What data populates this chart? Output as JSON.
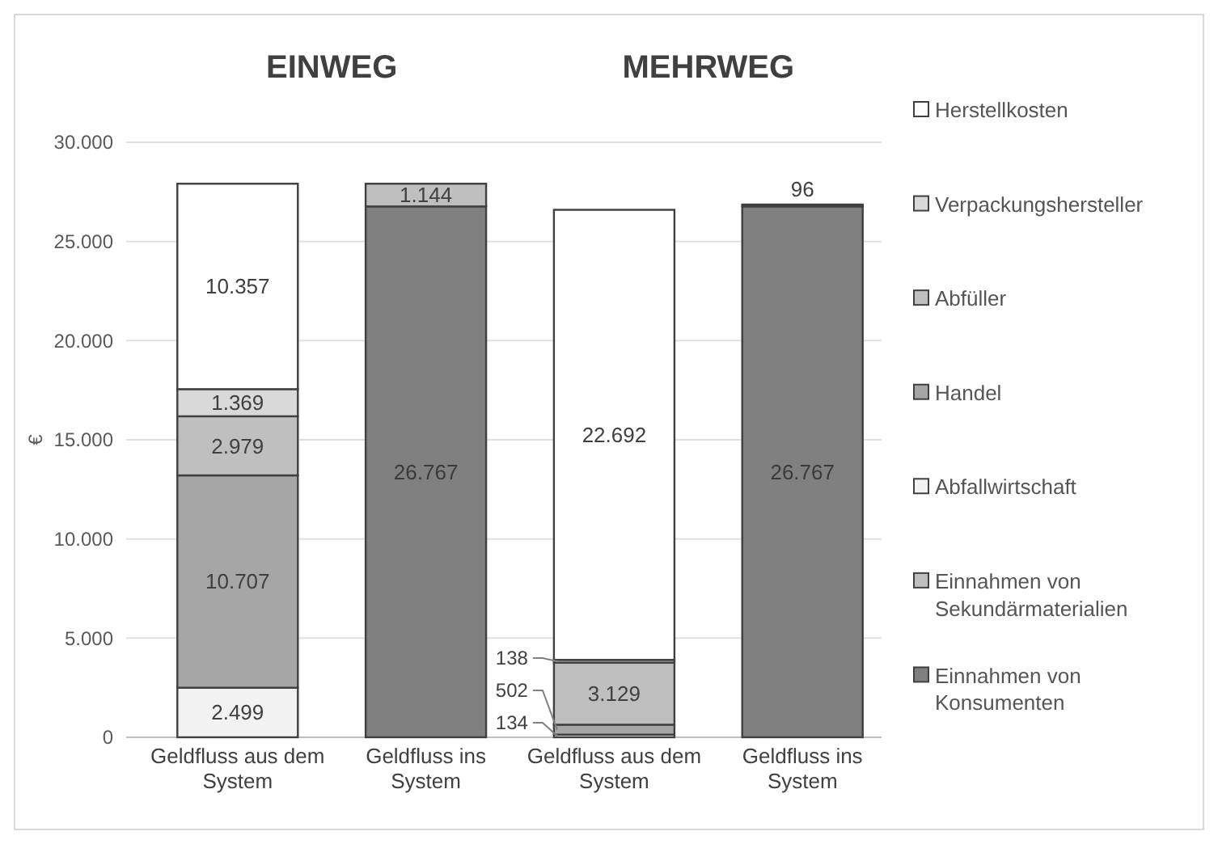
{
  "chart_data": {
    "type": "bar",
    "stacked": true,
    "ylabel": "€",
    "annotations": [
      "EINWEG",
      "MEHRWEG"
    ],
    "categories": [
      "Geldfluss aus dem System",
      "Geldfluss ins System",
      "Geldfluss aus dem System",
      "Geldfluss ins System"
    ],
    "series": [
      {
        "name": "Einnahmen von Konsumenten",
        "color": "#808080",
        "values": [
          null,
          26767,
          null,
          26767
        ],
        "value_labels": [
          null,
          "26.767",
          null,
          "26.767"
        ]
      },
      {
        "name": "Einnahmen von Sekundärmaterialien",
        "color": "#bfbfbf",
        "values": [
          null,
          1144,
          null,
          96
        ],
        "value_labels": [
          null,
          "1.144",
          null,
          "96"
        ]
      },
      {
        "name": "Abfallwirtschaft",
        "color": "#f2f2f2",
        "values": [
          2499,
          null,
          134,
          null
        ],
        "value_labels": [
          "2.499",
          null,
          "134",
          null
        ]
      },
      {
        "name": "Handel",
        "color": "#a6a6a6",
        "values": [
          10707,
          null,
          502,
          null
        ],
        "value_labels": [
          "10.707",
          null,
          "502",
          null
        ]
      },
      {
        "name": "Abfüller",
        "color": "#bfbfbf",
        "values": [
          2979,
          null,
          3129,
          null
        ],
        "value_labels": [
          "2.979",
          null,
          "3.129",
          null
        ]
      },
      {
        "name": "Verpackungshersteller",
        "color": "#d9d9d9",
        "values": [
          1369,
          null,
          138,
          null
        ],
        "value_labels": [
          "1.369",
          null,
          "138",
          null
        ]
      },
      {
        "name": "Herstellkosten",
        "color": "#ffffff",
        "values": [
          10357,
          null,
          22692,
          null
        ],
        "value_labels": [
          "10.357",
          null,
          "22.692",
          null
        ]
      }
    ],
    "ylim": [
      0,
      30000
    ],
    "yticks": [
      {
        "value": 0,
        "label": "0"
      },
      {
        "value": 5000,
        "label": "5.000"
      },
      {
        "value": 10000,
        "label": "10.000"
      },
      {
        "value": 15000,
        "label": "15.000"
      },
      {
        "value": 20000,
        "label": "20.000"
      },
      {
        "value": 25000,
        "label": "25.000"
      },
      {
        "value": 30000,
        "label": "30.000"
      }
    ],
    "grid": "y",
    "legend": "right"
  }
}
